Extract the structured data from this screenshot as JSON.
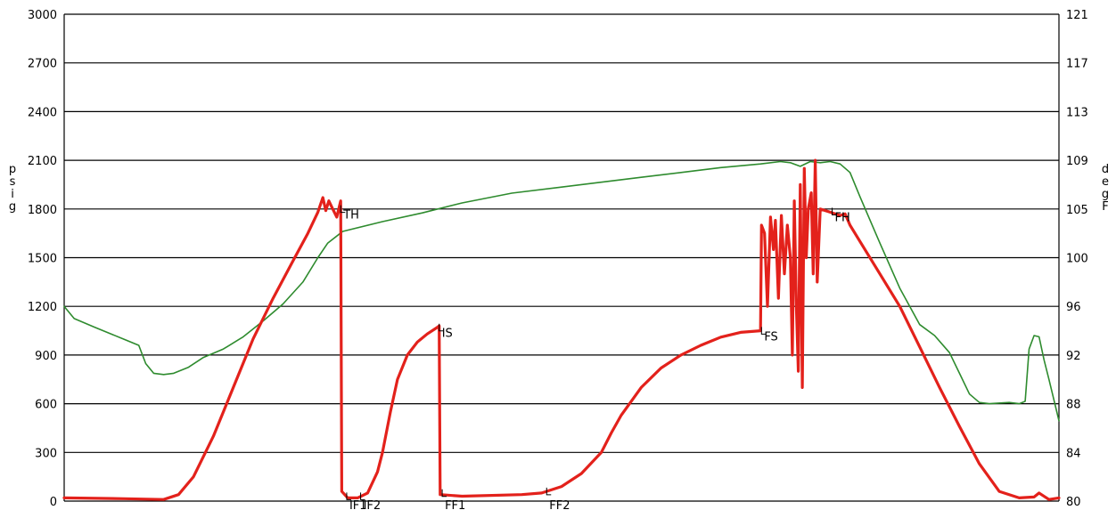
{
  "chart_data": {
    "type": "line",
    "title": "",
    "grid": true,
    "x": {
      "range": [
        0,
        100
      ],
      "tick_labels": []
    },
    "y_left": {
      "label_letters": [
        "p",
        "s",
        "i",
        "g"
      ],
      "range": [
        0,
        3000
      ],
      "ticks": [
        0,
        300,
        600,
        900,
        1200,
        1500,
        1800,
        2100,
        2400,
        2700,
        3000
      ],
      "tick_labels": [
        "0",
        "300",
        "600",
        "900",
        "1200",
        "1500",
        "1800",
        "2100",
        "2400",
        "2700",
        "3000"
      ]
    },
    "y_right": {
      "label_letters": [
        "d",
        "e",
        "g",
        "F"
      ],
      "tick_labels": [
        "80",
        "84",
        "88",
        "92",
        "96",
        "100",
        "105",
        "109",
        "113",
        "117",
        "121"
      ]
    },
    "series": [
      {
        "name": "",
        "axis": "left",
        "color": "#e3211b",
        "points": [
          [
            0,
            20
          ],
          [
            6,
            15
          ],
          [
            10,
            10
          ],
          [
            11.5,
            40
          ],
          [
            13,
            150
          ],
          [
            15,
            400
          ],
          [
            17,
            700
          ],
          [
            19,
            1000
          ],
          [
            21,
            1250
          ],
          [
            23,
            1480
          ],
          [
            24.5,
            1650
          ],
          [
            25.5,
            1780
          ],
          [
            26,
            1870
          ],
          [
            26.3,
            1790
          ],
          [
            26.6,
            1850
          ],
          [
            27,
            1800
          ],
          [
            27.4,
            1750
          ],
          [
            27.8,
            1850
          ],
          [
            27.9,
            60
          ],
          [
            28.5,
            20
          ],
          [
            29.5,
            20
          ],
          [
            30.5,
            50
          ],
          [
            31.5,
            180
          ],
          [
            32,
            300
          ],
          [
            32.8,
            550
          ],
          [
            33.5,
            750
          ],
          [
            34.5,
            900
          ],
          [
            35.5,
            980
          ],
          [
            36.5,
            1030
          ],
          [
            37.5,
            1070
          ],
          [
            37.7,
            1080
          ],
          [
            37.8,
            40
          ],
          [
            40,
            30
          ],
          [
            46,
            40
          ],
          [
            48,
            50
          ],
          [
            50,
            90
          ],
          [
            52,
            170
          ],
          [
            54,
            300
          ],
          [
            55,
            420
          ],
          [
            56,
            530
          ],
          [
            58,
            700
          ],
          [
            60,
            820
          ],
          [
            62,
            900
          ],
          [
            64,
            960
          ],
          [
            66,
            1010
          ],
          [
            68,
            1040
          ],
          [
            70,
            1050
          ],
          [
            70.1,
            1700
          ],
          [
            70.4,
            1650
          ],
          [
            70.7,
            1200
          ],
          [
            71,
            1750
          ],
          [
            71.3,
            1550
          ],
          [
            71.5,
            1730
          ],
          [
            71.8,
            1250
          ],
          [
            72.1,
            1760
          ],
          [
            72.4,
            1400
          ],
          [
            72.7,
            1700
          ],
          [
            73,
            1500
          ],
          [
            73.2,
            900
          ],
          [
            73.4,
            1850
          ],
          [
            73.6,
            1200
          ],
          [
            73.8,
            800
          ],
          [
            74,
            1950
          ],
          [
            74.2,
            700
          ],
          [
            74.4,
            2050
          ],
          [
            74.6,
            1500
          ],
          [
            74.8,
            1800
          ],
          [
            75.1,
            1900
          ],
          [
            75.3,
            1400
          ],
          [
            75.5,
            2100
          ],
          [
            75.7,
            1350
          ],
          [
            76,
            1800
          ],
          [
            77,
            1780
          ],
          [
            78,
            1760
          ],
          [
            78.5,
            1770
          ],
          [
            79,
            1700
          ],
          [
            80,
            1600
          ],
          [
            82,
            1400
          ],
          [
            84,
            1200
          ],
          [
            86,
            950
          ],
          [
            88,
            700
          ],
          [
            90,
            460
          ],
          [
            92,
            230
          ],
          [
            94,
            60
          ],
          [
            96,
            20
          ],
          [
            97.5,
            25
          ],
          [
            98,
            50
          ],
          [
            99,
            10
          ],
          [
            100,
            20
          ]
        ]
      },
      {
        "name": "",
        "axis": "right",
        "color": "#2e8b2e",
        "points": [
          [
            0,
            96
          ],
          [
            1,
            95
          ],
          [
            3,
            94.3
          ],
          [
            6,
            93.3
          ],
          [
            7.5,
            92.8
          ],
          [
            8.2,
            91.3
          ],
          [
            9,
            90.5
          ],
          [
            10,
            90.4
          ],
          [
            11,
            90.5
          ],
          [
            12.5,
            91
          ],
          [
            14,
            91.8
          ],
          [
            16,
            92.5
          ],
          [
            18,
            93.5
          ],
          [
            20,
            94.8
          ],
          [
            22,
            96.2
          ],
          [
            24,
            98
          ],
          [
            25.5,
            100
          ],
          [
            26.5,
            101.5
          ],
          [
            28,
            102.7
          ],
          [
            32,
            103.7
          ],
          [
            36,
            104.6
          ],
          [
            40,
            105.5
          ],
          [
            45,
            106.3
          ],
          [
            50,
            106.8
          ],
          [
            54,
            107.2
          ],
          [
            58,
            107.6
          ],
          [
            62,
            108
          ],
          [
            66,
            108.4
          ],
          [
            70,
            108.7
          ],
          [
            72,
            108.9
          ],
          [
            73,
            108.8
          ],
          [
            74,
            108.5
          ],
          [
            75,
            108.9
          ],
          [
            76,
            108.8
          ],
          [
            77,
            108.9
          ],
          [
            78,
            108.7
          ],
          [
            79,
            108
          ],
          [
            80,
            106
          ],
          [
            82,
            101.5
          ],
          [
            84,
            97.5
          ],
          [
            86,
            94.5
          ],
          [
            87.5,
            93.6
          ],
          [
            89,
            92.2
          ],
          [
            90,
            90.5
          ],
          [
            91,
            88.8
          ],
          [
            92,
            88.1
          ],
          [
            93,
            88
          ],
          [
            95,
            88.1
          ],
          [
            96,
            88
          ],
          [
            96.6,
            88.2
          ],
          [
            97,
            92.5
          ],
          [
            97.5,
            93.6
          ],
          [
            98,
            93.5
          ],
          [
            98.5,
            91.6
          ],
          [
            99,
            90
          ],
          [
            100,
            86.6
          ]
        ]
      }
    ],
    "markers": [
      {
        "label": "TH",
        "x": 27.8,
        "y": 1790
      },
      {
        "label": "IF1",
        "x": 28.4,
        "y": 20
      },
      {
        "label": "IF2",
        "x": 29.8,
        "y": 20
      },
      {
        "label": "IS",
        "x": 37.7,
        "y": 1060
      },
      {
        "label": "FF1",
        "x": 38,
        "y": 40
      },
      {
        "label": "FF2",
        "x": 48.5,
        "y": 50
      },
      {
        "label": "FS",
        "x": 70.1,
        "y": 1040
      },
      {
        "label": "FH",
        "x": 77.2,
        "y": 1775
      }
    ]
  }
}
